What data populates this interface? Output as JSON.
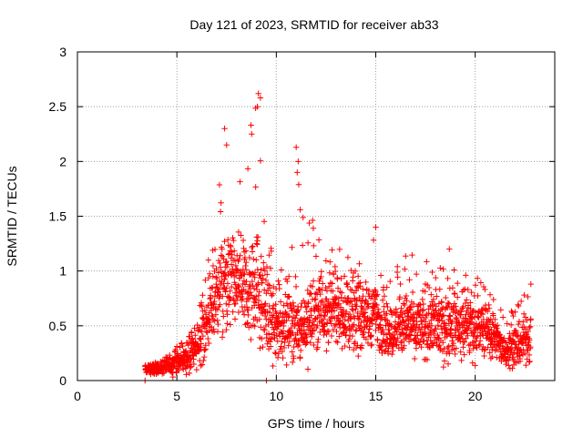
{
  "chart_data": {
    "type": "scatter",
    "title": "Day 121 of 2023, SRMTID for receiver ab33",
    "xlabel": "GPS time / hours",
    "ylabel": "SRMTID / TECUs",
    "xlim": [
      0,
      24
    ],
    "ylim": [
      0,
      3
    ],
    "xticks": [
      0,
      5,
      10,
      15,
      20
    ],
    "yticks": [
      0,
      0.5,
      1,
      1.5,
      2,
      2.5,
      3
    ],
    "grid": true,
    "marker": "+",
    "series": [
      {
        "name": "SRMTID",
        "color": "#ff0000",
        "envelope": [
          {
            "t": 3.4,
            "base": 0.1,
            "spread": 0.04,
            "peak": 0.14
          },
          {
            "t": 4.0,
            "base": 0.11,
            "spread": 0.05,
            "peak": 0.17
          },
          {
            "t": 4.5,
            "base": 0.13,
            "spread": 0.08,
            "peak": 0.25
          },
          {
            "t": 5.0,
            "base": 0.17,
            "spread": 0.1,
            "peak": 0.32
          },
          {
            "t": 5.5,
            "base": 0.2,
            "spread": 0.12,
            "peak": 0.38
          },
          {
            "t": 6.0,
            "base": 0.28,
            "spread": 0.18,
            "peak": 0.55
          },
          {
            "t": 6.5,
            "base": 0.5,
            "spread": 0.3,
            "peak": 1.0
          },
          {
            "t": 7.0,
            "base": 0.8,
            "spread": 0.35,
            "peak": 1.6
          },
          {
            "t": 7.5,
            "base": 0.9,
            "spread": 0.45,
            "peak": 2.3
          },
          {
            "t": 8.0,
            "base": 0.9,
            "spread": 0.45,
            "peak": 1.9
          },
          {
            "t": 8.5,
            "base": 0.85,
            "spread": 0.45,
            "peak": 2.1
          },
          {
            "t": 9.0,
            "base": 0.9,
            "spread": 0.55,
            "peak": 2.65
          },
          {
            "t": 9.5,
            "base": 0.65,
            "spread": 0.4,
            "peak": 1.6
          },
          {
            "t": 10.0,
            "base": 0.5,
            "spread": 0.3,
            "peak": 1.0
          },
          {
            "t": 10.5,
            "base": 0.5,
            "spread": 0.3,
            "peak": 1.1
          },
          {
            "t": 11.0,
            "base": 0.55,
            "spread": 0.35,
            "peak": 2.15
          },
          {
            "t": 11.5,
            "base": 0.5,
            "spread": 0.35,
            "peak": 1.55
          },
          {
            "t": 12.0,
            "base": 0.6,
            "spread": 0.35,
            "peak": 1.45
          },
          {
            "t": 12.5,
            "base": 0.65,
            "spread": 0.35,
            "peak": 1.25
          },
          {
            "t": 13.0,
            "base": 0.65,
            "spread": 0.35,
            "peak": 1.2
          },
          {
            "t": 13.5,
            "base": 0.62,
            "spread": 0.35,
            "peak": 1.25
          },
          {
            "t": 14.0,
            "base": 0.6,
            "spread": 0.35,
            "peak": 1.1
          },
          {
            "t": 14.5,
            "base": 0.6,
            "spread": 0.32,
            "peak": 1.05
          },
          {
            "t": 15.0,
            "base": 0.6,
            "spread": 0.32,
            "peak": 1.4
          },
          {
            "t": 15.5,
            "base": 0.45,
            "spread": 0.25,
            "peak": 0.9
          },
          {
            "t": 16.0,
            "base": 0.45,
            "spread": 0.25,
            "peak": 1.1
          },
          {
            "t": 16.5,
            "base": 0.5,
            "spread": 0.3,
            "peak": 1.2
          },
          {
            "t": 17.0,
            "base": 0.5,
            "spread": 0.3,
            "peak": 1.15
          },
          {
            "t": 17.5,
            "base": 0.5,
            "spread": 0.3,
            "peak": 1.1
          },
          {
            "t": 18.0,
            "base": 0.5,
            "spread": 0.3,
            "peak": 1.0
          },
          {
            "t": 18.5,
            "base": 0.5,
            "spread": 0.3,
            "peak": 1.2
          },
          {
            "t": 19.0,
            "base": 0.5,
            "spread": 0.3,
            "peak": 1.0
          },
          {
            "t": 19.5,
            "base": 0.5,
            "spread": 0.3,
            "peak": 1.0
          },
          {
            "t": 20.0,
            "base": 0.5,
            "spread": 0.3,
            "peak": 1.0
          },
          {
            "t": 20.5,
            "base": 0.45,
            "spread": 0.25,
            "peak": 0.85
          },
          {
            "t": 21.0,
            "base": 0.4,
            "spread": 0.22,
            "peak": 0.8
          },
          {
            "t": 21.5,
            "base": 0.3,
            "spread": 0.18,
            "peak": 0.55
          },
          {
            "t": 22.0,
            "base": 0.3,
            "spread": 0.18,
            "peak": 0.7
          },
          {
            "t": 22.5,
            "base": 0.35,
            "spread": 0.2,
            "peak": 0.8
          },
          {
            "t": 22.8,
            "base": 0.4,
            "spread": 0.25,
            "peak": 0.88
          }
        ],
        "outliers": [
          {
            "x": 3.4,
            "y": 0.0
          },
          {
            "x": 9.5,
            "y": 0.0
          },
          {
            "x": 7.4,
            "y": 2.3
          },
          {
            "x": 7.5,
            "y": 2.15
          },
          {
            "x": 9.1,
            "y": 2.62
          },
          {
            "x": 9.2,
            "y": 2.58
          },
          {
            "x": 9.05,
            "y": 2.5
          },
          {
            "x": 11.0,
            "y": 2.13
          },
          {
            "x": 11.1,
            "y": 2.0
          },
          {
            "x": 11.05,
            "y": 1.9
          },
          {
            "x": 15.0,
            "y": 1.4
          },
          {
            "x": 18.7,
            "y": 1.2
          },
          {
            "x": 22.8,
            "y": 0.88
          }
        ]
      }
    ]
  }
}
